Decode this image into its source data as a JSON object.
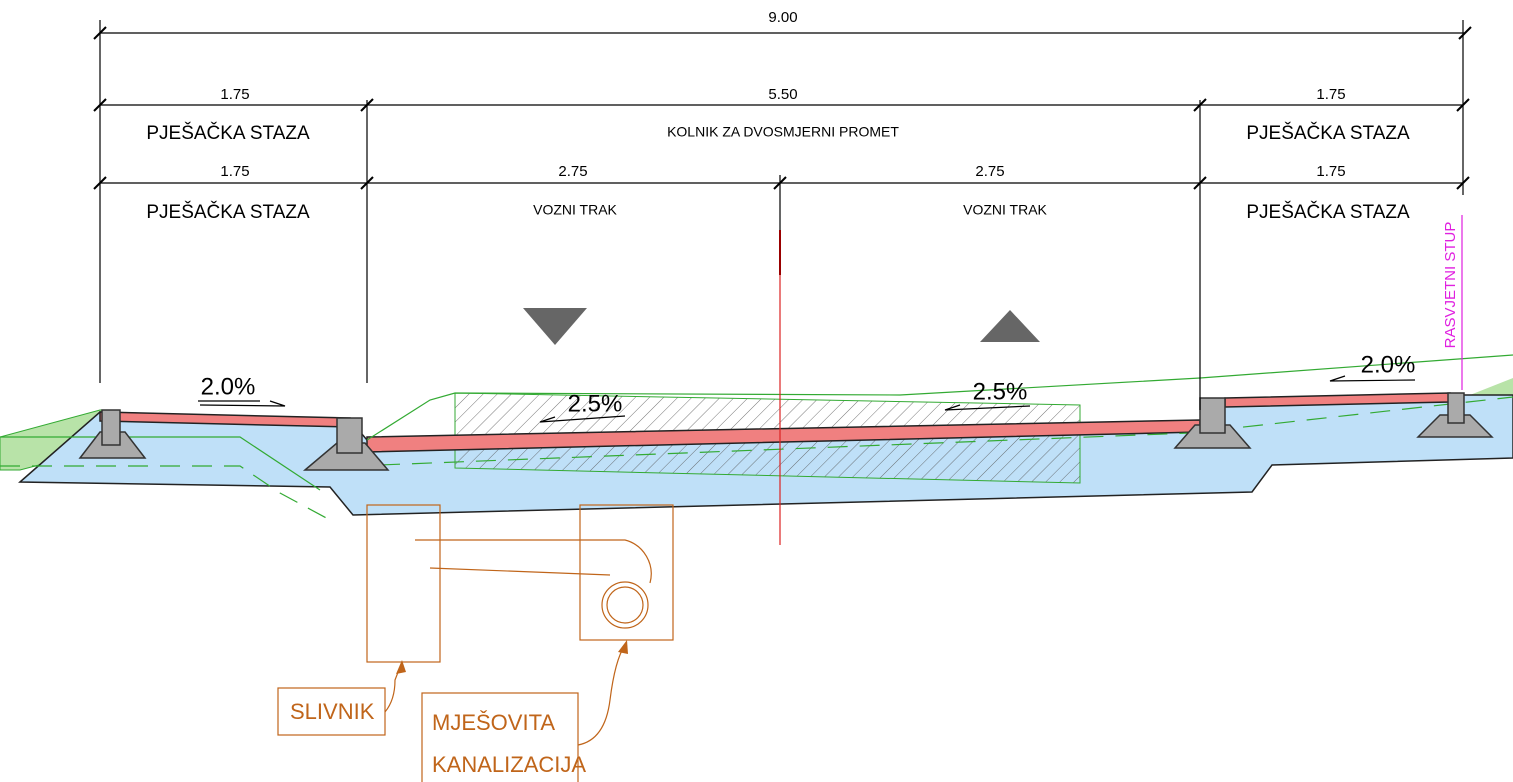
{
  "dimensions": {
    "total": "9.00",
    "row1": [
      "1.75",
      "5.50",
      "1.75"
    ],
    "row2": [
      "1.75",
      "2.75",
      "2.75",
      "1.75"
    ]
  },
  "labels": {
    "row1": [
      "PJEŠAČKA STAZA",
      "KOLNIK ZA DVOSMJERNI PROMET",
      "PJEŠAČKA STAZA"
    ],
    "row2": [
      "PJEŠAČKA STAZA",
      "VOZNI TRAK",
      "VOZNI TRAK",
      "PJEŠAČKA STAZA"
    ]
  },
  "slopes": [
    "2.0%",
    "2.5%",
    "2.5%",
    "2.0%"
  ],
  "pole": "RASVJETNI STUP",
  "callouts": {
    "inlet": "SLIVNIK",
    "sewer": [
      "MJEŠOVITA",
      "KANALIZACIJA"
    ]
  }
}
